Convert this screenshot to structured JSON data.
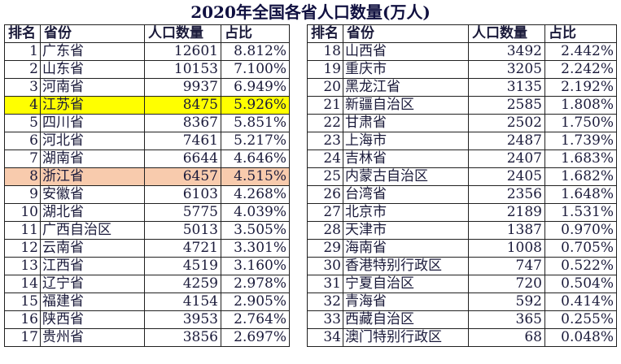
{
  "title": "2020年全国各省人口数量(万人)",
  "headers": {
    "rank": "排名",
    "province": "省份",
    "population": "人口数量",
    "share": "占比"
  },
  "left_rows": [
    {
      "rank": "1",
      "province": "广东省",
      "population": "12601",
      "share": "8.812%"
    },
    {
      "rank": "2",
      "province": "山东省",
      "population": "10153",
      "share": "7.100%"
    },
    {
      "rank": "3",
      "province": "河南省",
      "population": "9937",
      "share": "6.949%"
    },
    {
      "rank": "4",
      "province": "江苏省",
      "population": "8475",
      "share": "5.926%",
      "highlight": "#ffff00"
    },
    {
      "rank": "5",
      "province": "四川省",
      "population": "8367",
      "share": "5.851%"
    },
    {
      "rank": "6",
      "province": "河北省",
      "population": "7461",
      "share": "5.217%"
    },
    {
      "rank": "7",
      "province": "湖南省",
      "population": "6644",
      "share": "4.646%"
    },
    {
      "rank": "8",
      "province": "浙江省",
      "population": "6457",
      "share": "4.515%",
      "highlight": "#f8cbad"
    },
    {
      "rank": "9",
      "province": "安徽省",
      "population": "6103",
      "share": "4.268%"
    },
    {
      "rank": "10",
      "province": "湖北省",
      "population": "5775",
      "share": "4.039%"
    },
    {
      "rank": "11",
      "province": "广西自治区",
      "population": "5013",
      "share": "3.505%"
    },
    {
      "rank": "12",
      "province": "云南省",
      "population": "4721",
      "share": "3.301%"
    },
    {
      "rank": "13",
      "province": "江西省",
      "population": "4519",
      "share": "3.160%"
    },
    {
      "rank": "14",
      "province": "辽宁省",
      "population": "4259",
      "share": "2.978%"
    },
    {
      "rank": "15",
      "province": "福建省",
      "population": "4154",
      "share": "2.905%"
    },
    {
      "rank": "16",
      "province": "陕西省",
      "population": "3953",
      "share": "2.764%"
    },
    {
      "rank": "17",
      "province": "贵州省",
      "population": "3856",
      "share": "2.697%"
    }
  ],
  "right_rows": [
    {
      "rank": "18",
      "province": "山西省",
      "population": "3492",
      "share": "2.442%"
    },
    {
      "rank": "19",
      "province": "重庆市",
      "population": "3205",
      "share": "2.242%"
    },
    {
      "rank": "20",
      "province": "黑龙江省",
      "population": "3135",
      "share": "2.192%"
    },
    {
      "rank": "21",
      "province": "新疆自治区",
      "population": "2585",
      "share": "1.808%"
    },
    {
      "rank": "22",
      "province": "甘肃省",
      "population": "2502",
      "share": "1.750%"
    },
    {
      "rank": "23",
      "province": "上海市",
      "population": "2487",
      "share": "1.739%"
    },
    {
      "rank": "24",
      "province": "吉林省",
      "population": "2407",
      "share": "1.683%"
    },
    {
      "rank": "25",
      "province": "内蒙古自治区",
      "population": "2405",
      "share": "1.682%"
    },
    {
      "rank": "26",
      "province": "台湾省",
      "population": "2356",
      "share": "1.648%"
    },
    {
      "rank": "27",
      "province": "北京市",
      "population": "2189",
      "share": "1.531%"
    },
    {
      "rank": "28",
      "province": "天津市",
      "population": "1387",
      "share": "0.970%"
    },
    {
      "rank": "29",
      "province": "海南省",
      "population": "1008",
      "share": "0.705%"
    },
    {
      "rank": "30",
      "province": "香港特别行政区",
      "population": "747",
      "share": "0.522%"
    },
    {
      "rank": "31",
      "province": "宁夏自治区",
      "population": "720",
      "share": "0.504%"
    },
    {
      "rank": "32",
      "province": "青海省",
      "population": "592",
      "share": "0.414%"
    },
    {
      "rank": "33",
      "province": "西藏自治区",
      "population": "365",
      "share": "0.255%"
    },
    {
      "rank": "34",
      "province": "澳门特别行政区",
      "population": "68",
      "share": "0.048%"
    }
  ]
}
